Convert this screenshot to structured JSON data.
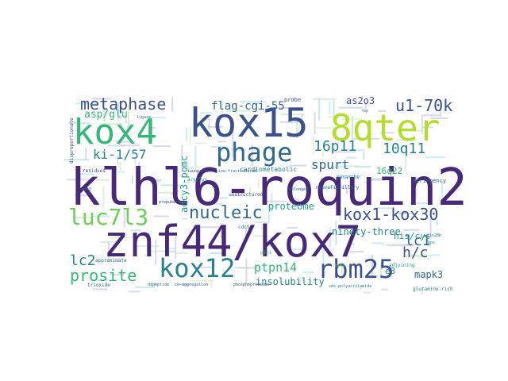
{
  "palette": {
    "purple": "#482878",
    "indigo": "#3b518b",
    "blue": "#31688e",
    "teal": "#26828e",
    "sea": "#1f9e89",
    "green": "#35b779",
    "lime": "#6ece58",
    "yellow": "#b5de2b",
    "gold": "#d8e219"
  },
  "words": [
    {
      "text": "klhl6-roquin2",
      "color": "#482878",
      "orientation": "horizontal"
    },
    {
      "text": "znf44/kox7",
      "color": "#482878",
      "orientation": "horizontal"
    },
    {
      "text": "kox15",
      "color": "#3b518b",
      "orientation": "horizontal"
    },
    {
      "text": "8qter",
      "color": "#b5de2b",
      "orientation": "horizontal"
    },
    {
      "text": "kox4",
      "color": "#35b779",
      "orientation": "horizontal"
    },
    {
      "text": "phage",
      "color": "#31688e",
      "orientation": "horizontal"
    },
    {
      "text": "kox12",
      "color": "#26828e",
      "orientation": "horizontal"
    },
    {
      "text": "rbm25",
      "color": "#3b518b",
      "orientation": "horizontal"
    },
    {
      "text": "luc7l3",
      "color": "#6ece58",
      "orientation": "horizontal"
    },
    {
      "text": "nucleic",
      "color": "#31688e",
      "orientation": "horizontal"
    },
    {
      "text": "metaphase",
      "color": "#3b518b",
      "orientation": "horizontal"
    },
    {
      "text": "kox1-kox30",
      "color": "#3b518b",
      "orientation": "horizontal"
    },
    {
      "text": "prosite",
      "color": "#35b779",
      "orientation": "horizontal"
    },
    {
      "text": "u1-70k",
      "color": "#3b518b",
      "orientation": "horizontal"
    },
    {
      "text": "16p11",
      "color": "#26828e",
      "orientation": "horizontal"
    },
    {
      "text": "10q11",
      "color": "#26828e",
      "orientation": "horizontal"
    },
    {
      "text": "spurt",
      "color": "#31688e",
      "orientation": "horizontal"
    },
    {
      "text": "ki-1/57",
      "color": "#26828e",
      "orientation": "horizontal"
    },
    {
      "text": "lc1",
      "color": "#31688e",
      "orientation": "horizontal"
    },
    {
      "text": "lc2",
      "color": "#26828e",
      "orientation": "horizontal"
    },
    {
      "text": "h/c",
      "color": "#3b518b",
      "orientation": "horizontal"
    },
    {
      "text": "ptpn14",
      "color": "#35b779",
      "orientation": "horizontal"
    },
    {
      "text": "flag-cgi-55",
      "color": "#31688e",
      "orientation": "horizontal"
    },
    {
      "text": "asp/glu",
      "color": "#35b779",
      "orientation": "horizontal"
    },
    {
      "text": "as2o3",
      "color": "#3b518b",
      "orientation": "horizontal"
    },
    {
      "text": "proteome",
      "color": "#1f9e89",
      "orientation": "horizontal"
    },
    {
      "text": "ninety-three",
      "color": "#26828e",
      "orientation": "horizontal"
    },
    {
      "text": "insolubility",
      "color": "#26828e",
      "orientation": "horizontal"
    },
    {
      "text": "mapk3",
      "color": "#31688e",
      "orientation": "horizontal"
    },
    {
      "text": "16q22",
      "color": "#35b779",
      "orientation": "horizontal"
    },
    {
      "text": "his/cys",
      "color": "#1f9e89",
      "orientation": "horizontal"
    },
    {
      "text": "e3",
      "color": "#26828e",
      "orientation": "horizontal"
    },
    {
      "text": "adcy3-pomc",
      "color": "#1f9e89",
      "orientation": "vertical"
    },
    {
      "text": "cardiometabolic",
      "color": "#26828e",
      "orientation": "horizontal"
    },
    {
      "text": "stringency",
      "color": "#31688e",
      "orientation": "horizontal"
    },
    {
      "text": "neurofibrillary",
      "color": "#31688e",
      "orientation": "horizontal"
    },
    {
      "text": "menarche",
      "color": "#31688e",
      "orientation": "horizontal"
    },
    {
      "text": "approximate",
      "color": "#31688e",
      "orientation": "horizontal"
    },
    {
      "text": "trioxide",
      "color": "#31688e",
      "orientation": "horizontal"
    },
    {
      "text": "dipeptide",
      "color": "#31688e",
      "orientation": "horizontal"
    },
    {
      "text": "co-aggregation",
      "color": "#31688e",
      "orientation": "horizontal"
    },
    {
      "text": "phosphoproteome",
      "color": "#3b518b",
      "orientation": "horizontal"
    },
    {
      "text": "sds-polyacrylamide",
      "color": "#26828e",
      "orientation": "horizontal"
    },
    {
      "text": "glutamine-rich",
      "color": "#26828e",
      "orientation": "horizontal"
    },
    {
      "text": "tauopathies",
      "color": "#3b518b",
      "orientation": "horizontal"
    },
    {
      "text": "size-fractionated",
      "color": "#31688e",
      "orientation": "horizontal"
    },
    {
      "text": "unstructured",
      "color": "#3b518b",
      "orientation": "horizontal"
    },
    {
      "text": "belonged",
      "color": "#31688e",
      "orientation": "horizontal"
    },
    {
      "text": "residues",
      "color": "#3b518b",
      "orientation": "horizontal"
    },
    {
      "text": "prepubertal",
      "color": "#3b518b",
      "orientation": "horizontal"
    },
    {
      "text": "probe",
      "color": "#3b518b",
      "orientation": "horizontal"
    },
    {
      "text": "adjoining",
      "color": "#1f9e89",
      "orientation": "horizontal"
    },
    {
      "text": "arg/lys",
      "color": "#1f9e89",
      "orientation": "horizontal"
    },
    {
      "text": "disproportionate",
      "color": "#3b518b",
      "orientation": "vertical"
    },
    {
      "text": "lin28b",
      "color": "#31688e",
      "orientation": "horizontal"
    },
    {
      "text": "rbps",
      "color": "#26828e",
      "orientation": "horizontal"
    },
    {
      "text": "ligase",
      "color": "#31688e",
      "orientation": "horizontal"
    },
    {
      "text": "cdc5",
      "color": "#26828e",
      "orientation": "horizontal"
    },
    {
      "text": "pin1",
      "color": "#35b779",
      "orientation": "horizontal"
    },
    {
      "text": "rbp",
      "color": "#26828e",
      "orientation": "horizontal"
    },
    {
      "text": "orf1",
      "color": "#26828e",
      "orientation": "horizontal"
    },
    {
      "text": "nqo1",
      "color": "#6ece58",
      "orientation": "horizontal"
    }
  ]
}
